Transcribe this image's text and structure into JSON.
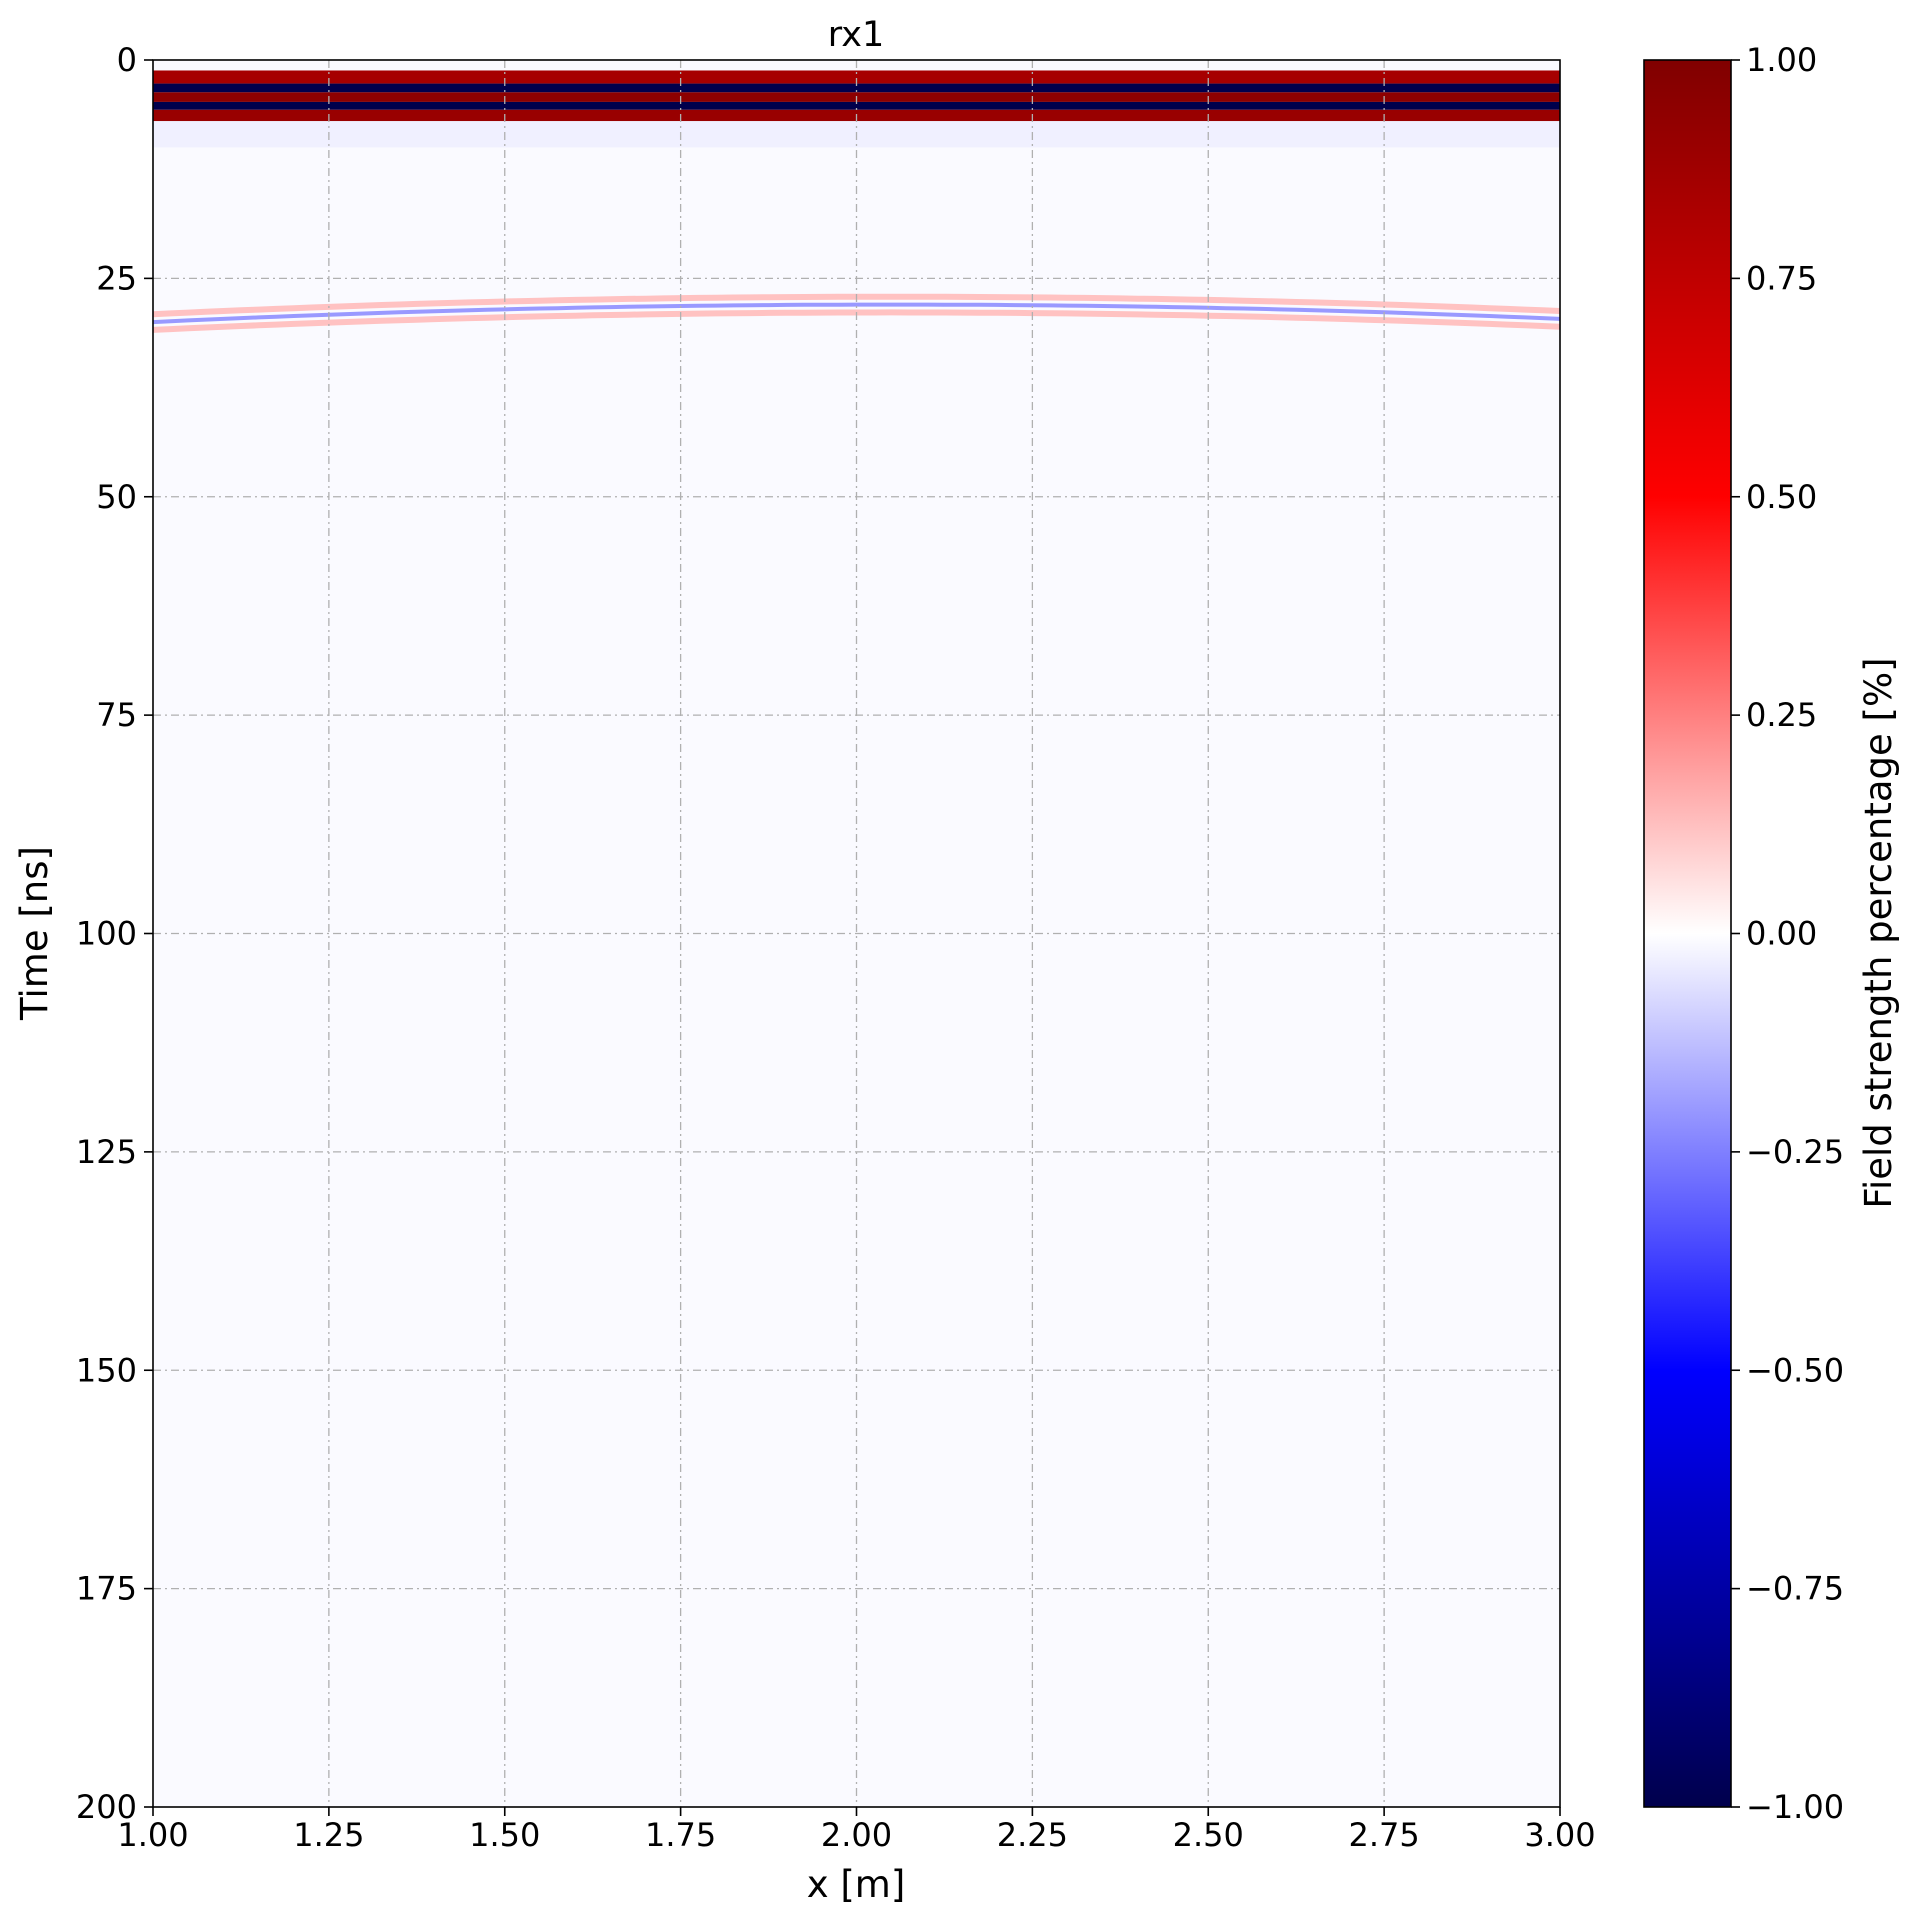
{
  "chart_data": {
    "type": "heatmap",
    "title": "rx1",
    "xlabel": "x [m]",
    "ylabel": "Time [ns]",
    "xlim": [
      1.0,
      3.0
    ],
    "ylim": [
      200,
      0
    ],
    "y_inverted": true,
    "grid": true,
    "x_ticks": [
      "1.00",
      "1.25",
      "1.50",
      "1.75",
      "2.00",
      "2.25",
      "2.50",
      "2.75",
      "3.00"
    ],
    "y_ticks": [
      "0",
      "25",
      "50",
      "75",
      "100",
      "125",
      "150",
      "175",
      "200"
    ],
    "colormap": "seismic",
    "colorbar": {
      "label": "Field strength percentage [%]",
      "range": [
        -1.0,
        1.0
      ],
      "ticks": [
        "1.00",
        "0.75",
        "0.50",
        "0.25",
        "0.00",
        "−0.25",
        "−0.50",
        "−0.75",
        "−1.00"
      ],
      "colors": {
        "min": "#00004c",
        "low": "#0000ff",
        "mid": "#ffffff",
        "high": "#ff0000",
        "max": "#800000"
      }
    },
    "direct_wave": {
      "time_range_ns": [
        1.2,
        7.0
      ],
      "bands": [
        {
          "t_start": 1.2,
          "t_end": 2.7,
          "value": 0.85
        },
        {
          "t_start": 2.7,
          "t_end": 3.7,
          "value": -1.0
        },
        {
          "t_start": 3.7,
          "t_end": 4.8,
          "value": 0.95
        },
        {
          "t_start": 4.8,
          "t_end": 5.7,
          "value": -1.0
        },
        {
          "t_start": 5.7,
          "t_end": 7.0,
          "value": 0.9
        }
      ]
    },
    "reflection_hyperbola": {
      "apex_x": 2.05,
      "apex_time_ns": 28.0,
      "edge_time_ns": 30.0,
      "center_value": -0.2,
      "side_value": 0.12
    },
    "background_value": -0.01
  }
}
